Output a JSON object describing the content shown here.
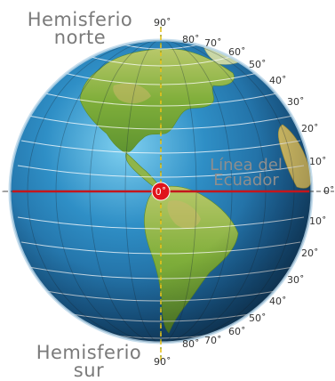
{
  "labels": {
    "north_hemisphere": [
      "Hemisferio",
      "norte"
    ],
    "south_hemisphere": [
      "Hemisferio",
      "sur"
    ],
    "equator": [
      "Línea del",
      "Ecuador"
    ],
    "center_marker": "0˚"
  },
  "latitudes": {
    "north": [
      "90˚",
      "80˚",
      "70˚",
      "60˚",
      "50˚",
      "40˚",
      "30˚",
      "20˚",
      "10˚"
    ],
    "equator_right": "0˚",
    "south": [
      "10˚",
      "20˚",
      "30˚",
      "40˚",
      "50˚",
      "60˚",
      "70˚",
      "80˚",
      "90˚"
    ]
  },
  "colors": {
    "ocean": "#1f6fa8",
    "land": "#7fae3a",
    "equator_line": "#c4161c",
    "meridian_line": "#e8c21a",
    "grid": "#ffffff"
  }
}
